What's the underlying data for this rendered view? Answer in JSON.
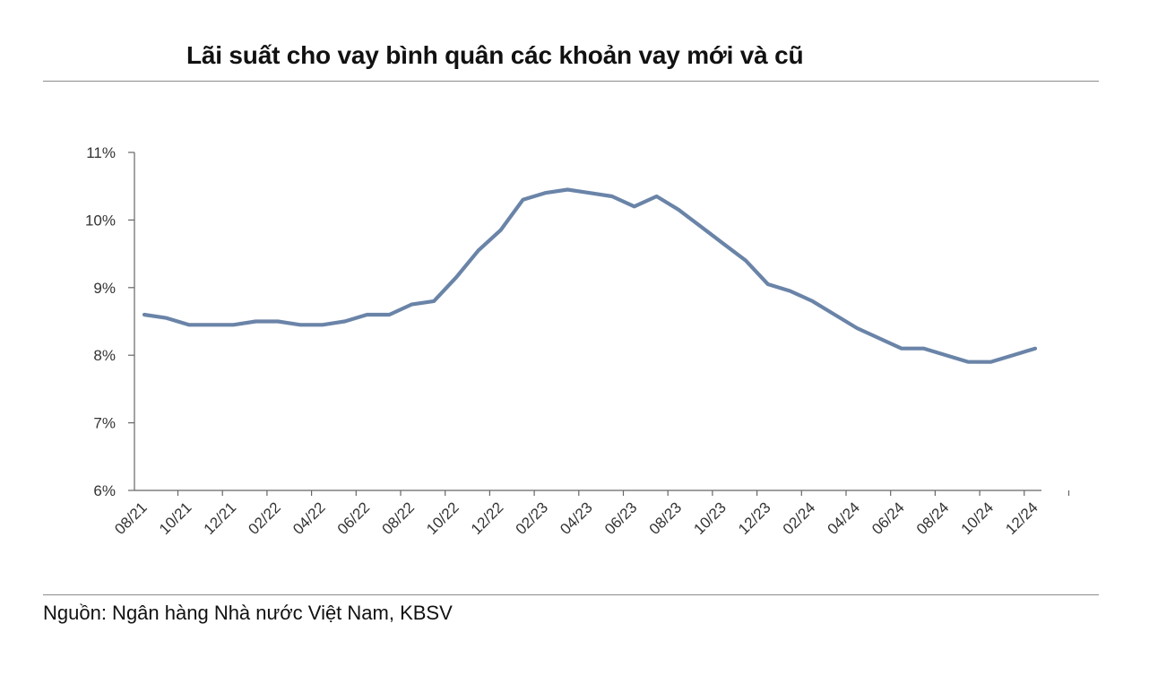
{
  "title": "Lãi suất cho vay bình quân các khoản vay mới và cũ",
  "source": "Nguồn: Ngân hàng Nhà nước Việt Nam, KBSV",
  "colors": {
    "line": "#6a84a8",
    "axis": "#666666",
    "rule": "#8c8c8c"
  },
  "chart_data": {
    "type": "line",
    "title": "Lãi suất cho vay bình quân các khoản vay mới và cũ",
    "xlabel": "",
    "ylabel": "",
    "ylim": [
      6,
      11
    ],
    "yticks": [
      "6%",
      "7%",
      "8%",
      "9%",
      "10%",
      "11%"
    ],
    "xtick_labels": [
      "08/21",
      "10/21",
      "12/21",
      "02/22",
      "04/22",
      "06/22",
      "08/22",
      "10/22",
      "12/22",
      "02/23",
      "04/23",
      "06/23",
      "08/23",
      "10/23",
      "12/23",
      "02/24",
      "04/24",
      "06/24",
      "08/24",
      "10/24",
      "12/24"
    ],
    "grid": false,
    "legend": "none",
    "x": [
      "08/21",
      "09/21",
      "10/21",
      "11/21",
      "12/21",
      "01/22",
      "02/22",
      "03/22",
      "04/22",
      "05/22",
      "06/22",
      "07/22",
      "08/22",
      "09/22",
      "10/22",
      "11/22",
      "12/22",
      "01/23",
      "02/23",
      "03/23",
      "04/23",
      "05/23",
      "06/23",
      "07/23",
      "08/23",
      "09/23",
      "10/23",
      "11/23",
      "12/23",
      "01/24",
      "02/24",
      "03/24",
      "04/24",
      "05/24",
      "06/24",
      "07/24",
      "08/24",
      "09/24",
      "10/24",
      "11/24",
      "12/24"
    ],
    "series": [
      {
        "values": [
          8.6,
          8.55,
          8.45,
          8.45,
          8.45,
          8.5,
          8.5,
          8.45,
          8.45,
          8.5,
          8.6,
          8.6,
          8.75,
          8.8,
          9.15,
          9.55,
          9.85,
          10.3,
          10.4,
          10.45,
          10.4,
          10.35,
          10.2,
          10.35,
          10.15,
          9.9,
          9.65,
          9.4,
          9.05,
          8.95,
          8.8,
          8.6,
          8.4,
          8.25,
          8.1,
          8.1,
          8.0,
          7.9,
          7.9,
          8.0,
          8.1
        ]
      }
    ]
  }
}
